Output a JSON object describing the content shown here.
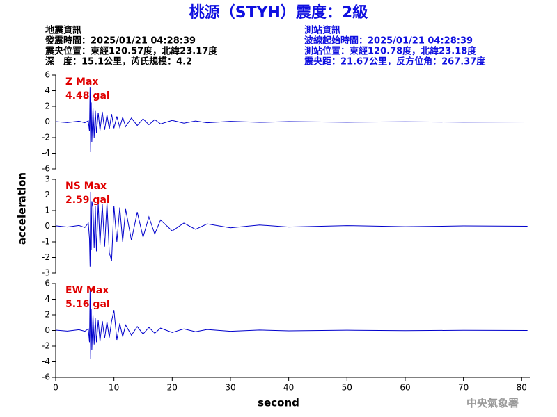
{
  "header": {
    "title": "桃源（STYH）震度：2級",
    "left": [
      "地震資訊",
      "發震時間：2025/01/21 04:28:39",
      "震央位置：東經120.57度，北緯23.17度",
      "深　度：15.1公里，芮氏規模：4.2"
    ],
    "right": [
      "測站資訊",
      "波線起始時間：2025/01/21 04:28:39",
      "測站位置：東經120.78度，北緯23.18度",
      "震央距：21.67公里，反方位角：267.37度"
    ]
  },
  "footer": "中央氣象署",
  "chart_data": [
    {
      "type": "line",
      "annotation": [
        "Z Max",
        "4.48 gal"
      ],
      "color": "#0000cc",
      "x": [
        0,
        2,
        4,
        5,
        5.6,
        5.8,
        5.9,
        6.0,
        6.1,
        6.2,
        6.4,
        6.6,
        6.8,
        7,
        7.3,
        7.6,
        8,
        8.4,
        8.8,
        9.2,
        9.6,
        10,
        10.5,
        11,
        11.5,
        12,
        13,
        14,
        15,
        16,
        17,
        18,
        20,
        22,
        24,
        26,
        30,
        35,
        40,
        50,
        60,
        70,
        81
      ],
      "values": [
        0.05,
        -0.08,
        0.1,
        -0.1,
        0.15,
        -1.2,
        4.48,
        -3.8,
        2.5,
        -2.6,
        1.8,
        -2.0,
        1.5,
        -1.4,
        1.2,
        -1.1,
        1.3,
        -1.0,
        0.9,
        -0.9,
        1.0,
        -0.8,
        0.7,
        -0.7,
        0.6,
        -0.6,
        0.5,
        -0.45,
        0.4,
        -0.35,
        0.3,
        -0.25,
        0.2,
        -0.15,
        0.12,
        -0.1,
        0.08,
        -0.05,
        0.05,
        -0.03,
        0.02,
        -0.02,
        0
      ],
      "xlim": [
        0,
        81.4
      ],
      "ylim": [
        -6,
        6
      ],
      "yticks": [
        -6,
        -4,
        -2,
        0,
        2,
        4,
        6
      ]
    },
    {
      "type": "line",
      "annotation": [
        "NS Max",
        "2.59 gal"
      ],
      "color": "#0000cc",
      "ylabel": "acceleration",
      "x": [
        0,
        2,
        4,
        5,
        5.6,
        5.8,
        5.9,
        6.0,
        6.1,
        6.2,
        6.4,
        6.6,
        6.8,
        7,
        7.3,
        7.6,
        8,
        8.4,
        8.8,
        9.2,
        9.6,
        10,
        10.5,
        11,
        11.5,
        12,
        13,
        14,
        15,
        16,
        17,
        18,
        20,
        22,
        24,
        26,
        30,
        35,
        40,
        50,
        60,
        70,
        81
      ],
      "values": [
        0.03,
        -0.05,
        0.05,
        -0.08,
        0.2,
        -0.8,
        -2.59,
        2.2,
        -1.5,
        1.6,
        1.2,
        -1.4,
        1.3,
        -1.6,
        1.5,
        -1.2,
        1.4,
        -1.3,
        1.5,
        -1.7,
        -2.2,
        1.3,
        -1.0,
        1.2,
        -1.0,
        1.1,
        -0.9,
        0.9,
        -0.7,
        0.6,
        -0.5,
        0.4,
        -0.3,
        0.2,
        -0.2,
        0.15,
        -0.1,
        0.08,
        -0.05,
        0.04,
        -0.03,
        0.02,
        0
      ],
      "xlim": [
        0,
        81.4
      ],
      "ylim": [
        -3,
        3
      ],
      "yticks": [
        -3,
        -2,
        -1,
        0,
        1,
        2,
        3
      ]
    },
    {
      "type": "line",
      "annotation": [
        "EW Max",
        "5.16 gal"
      ],
      "color": "#0000cc",
      "xlabel": "second",
      "x": [
        0,
        2,
        4,
        5,
        5.6,
        5.8,
        5.9,
        6.0,
        6.1,
        6.2,
        6.4,
        6.6,
        6.8,
        7,
        7.3,
        7.6,
        8,
        8.4,
        8.8,
        9.2,
        9.6,
        10,
        10.5,
        11,
        11.5,
        12,
        13,
        14,
        15,
        16,
        17,
        18,
        20,
        22,
        24,
        26,
        30,
        35,
        40,
        50,
        60,
        70,
        81
      ],
      "values": [
        0.05,
        -0.08,
        0.1,
        -0.1,
        0.2,
        -1.5,
        5.16,
        -3.6,
        2.8,
        -2.5,
        2.0,
        -1.8,
        1.6,
        -1.5,
        1.3,
        -1.4,
        1.2,
        -1.0,
        1.1,
        -0.9,
        1.2,
        2.6,
        -1.2,
        0.9,
        -0.8,
        0.7,
        -0.6,
        0.5,
        -0.45,
        0.4,
        -0.35,
        0.3,
        -0.25,
        0.2,
        -0.15,
        0.12,
        -0.1,
        0.06,
        -0.05,
        0.03,
        -0.02,
        0.02,
        0
      ],
      "xlim": [
        0,
        81.4
      ],
      "ylim": [
        -6,
        6
      ],
      "yticks": [
        -6,
        -4,
        -2,
        0,
        2,
        4,
        6
      ],
      "xticks": [
        0,
        10,
        20,
        30,
        40,
        50,
        60,
        70,
        80
      ]
    }
  ]
}
